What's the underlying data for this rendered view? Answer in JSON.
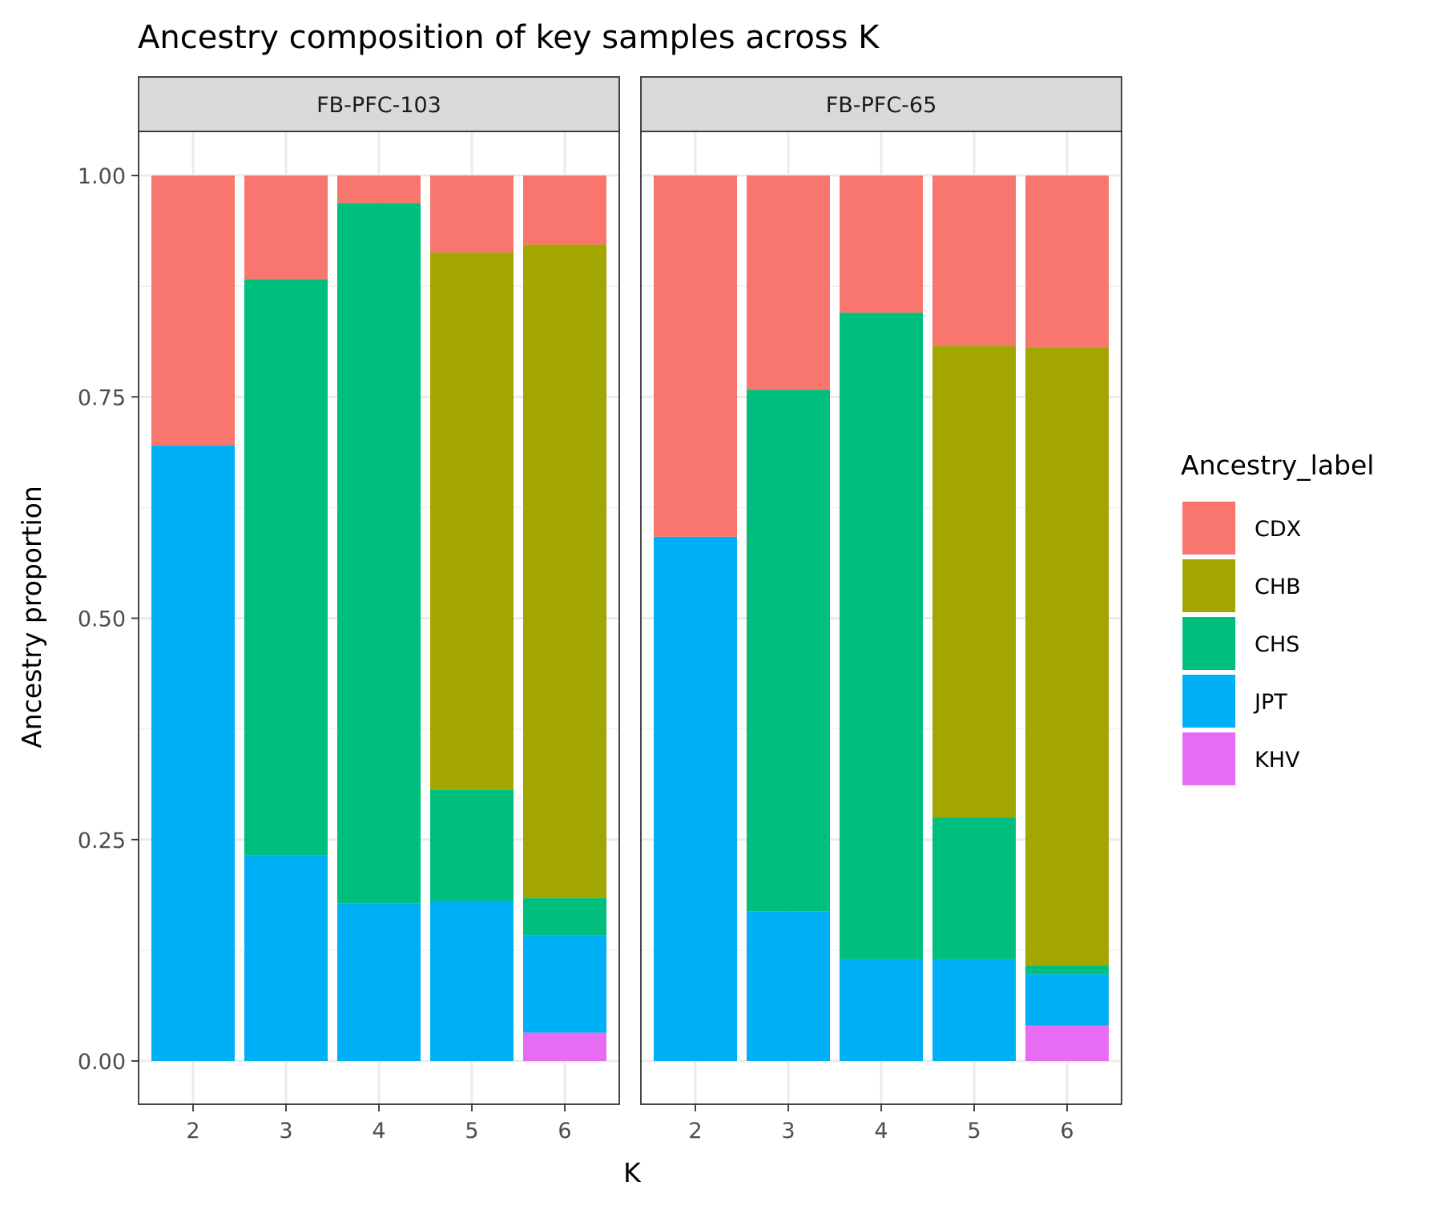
{
  "chart_data": {
    "type": "bar",
    "stacked": true,
    "title": "Ancestry composition of key samples across K",
    "xlabel": "K",
    "ylabel": "Ancestry proportion",
    "ylim": [
      0,
      1
    ],
    "y_ticks": [
      "0.00",
      "0.25",
      "0.50",
      "0.75",
      "1.00"
    ],
    "categories": [
      "2",
      "3",
      "4",
      "5",
      "6"
    ],
    "grid": true,
    "legend": {
      "title": "Ancestry_label",
      "position": "right",
      "entries": [
        {
          "name": "CDX",
          "color": "#F8766D"
        },
        {
          "name": "CHB",
          "color": "#A3A500"
        },
        {
          "name": "CHS",
          "color": "#00BF7D"
        },
        {
          "name": "JPT",
          "color": "#00B0F6"
        },
        {
          "name": "KHV",
          "color": "#E76BF3"
        }
      ]
    },
    "stack_order_bottom_to_top": [
      "KHV",
      "JPT",
      "CHS",
      "CHB",
      "CDX"
    ],
    "panels": [
      {
        "name": "FB-PFC-103",
        "series": [
          {
            "name": "CDX",
            "values": [
              0.305,
              0.117,
              0.031,
              0.087,
              0.078
            ]
          },
          {
            "name": "CHB",
            "values": [
              0,
              0,
              0,
              0.607,
              0.738
            ]
          },
          {
            "name": "CHS",
            "values": [
              0,
              0.651,
              0.791,
              0.125,
              0.042
            ]
          },
          {
            "name": "JPT",
            "values": [
              0.695,
              0.232,
              0.178,
              0.181,
              0.11
            ]
          },
          {
            "name": "KHV",
            "values": [
              0,
              0,
              0,
              0,
              0.032
            ]
          }
        ]
      },
      {
        "name": "FB-PFC-65",
        "series": [
          {
            "name": "CDX",
            "values": [
              0.408,
              0.242,
              0.155,
              0.192,
              0.194
            ]
          },
          {
            "name": "CHB",
            "values": [
              0,
              0,
              0,
              0.533,
              0.698
            ]
          },
          {
            "name": "CHS",
            "values": [
              0,
              0.589,
              0.73,
              0.16,
              0.01
            ]
          },
          {
            "name": "JPT",
            "values": [
              0.592,
              0.169,
              0.115,
              0.115,
              0.058
            ]
          },
          {
            "name": "KHV",
            "values": [
              0,
              0,
              0,
              0,
              0.04
            ]
          }
        ]
      }
    ]
  }
}
